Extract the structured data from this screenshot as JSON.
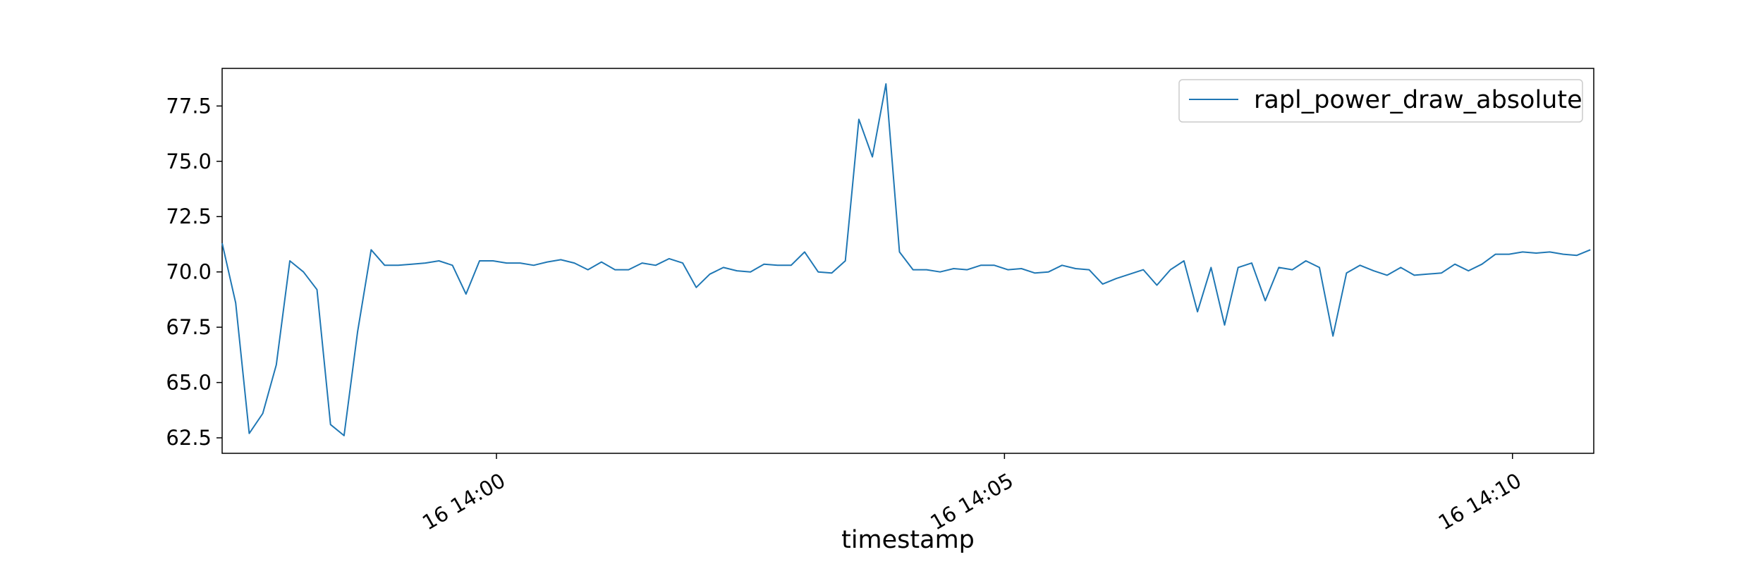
{
  "chart_data": {
    "type": "line",
    "title": "",
    "xlabel": "timestamp",
    "ylabel": "",
    "xlim_minutes_past": [
      57.3,
      70.8
    ],
    "ylim": [
      61.8,
      79.2
    ],
    "grid": false,
    "legend_position": "top-right",
    "x_tick_labels": [
      {
        "label": "16 14:00",
        "time": "14:00"
      },
      {
        "label": "16 14:05",
        "time": "14:05"
      },
      {
        "label": "16 14:10",
        "time": "14:10"
      }
    ],
    "y_ticks": [
      62.5,
      65.0,
      67.5,
      70.0,
      72.5,
      75.0,
      77.5
    ],
    "y_tick_labels": [
      "62.5",
      "65.0",
      "67.5",
      "70.0",
      "72.5",
      "75.0",
      "77.5"
    ],
    "series": [
      {
        "name": "rapl_power_draw_absolute",
        "color": "#1f77b4",
        "x_start": "13:57:18",
        "x_step_seconds": 8,
        "values": [
          71.3,
          68.6,
          62.7,
          63.6,
          65.8,
          70.5,
          70.0,
          69.2,
          63.1,
          62.6,
          67.3,
          71.0,
          70.3,
          70.3,
          70.35,
          70.4,
          70.5,
          70.3,
          69.0,
          70.5,
          70.5,
          70.4,
          70.4,
          70.3,
          70.45,
          70.55,
          70.4,
          70.1,
          70.45,
          70.1,
          70.1,
          70.4,
          70.3,
          70.6,
          70.4,
          69.3,
          69.9,
          70.2,
          70.05,
          70.0,
          70.35,
          70.3,
          70.3,
          70.9,
          70.0,
          69.95,
          70.5,
          76.9,
          75.2,
          78.5,
          70.9,
          70.1,
          70.1,
          70.0,
          70.15,
          70.1,
          70.3,
          70.3,
          70.1,
          70.15,
          69.95,
          70.0,
          70.3,
          70.15,
          70.1,
          69.45,
          69.7,
          69.9,
          70.1,
          69.4,
          70.1,
          70.5,
          68.2,
          70.2,
          67.6,
          70.2,
          70.4,
          68.7,
          70.2,
          70.1,
          70.5,
          70.2,
          67.1,
          69.95,
          70.3,
          70.05,
          69.85,
          70.2,
          69.85,
          69.9,
          69.95,
          70.35,
          70.05,
          70.35,
          70.8,
          70.8,
          70.9,
          70.85,
          70.9,
          70.8,
          70.75,
          71.0
        ]
      }
    ]
  }
}
